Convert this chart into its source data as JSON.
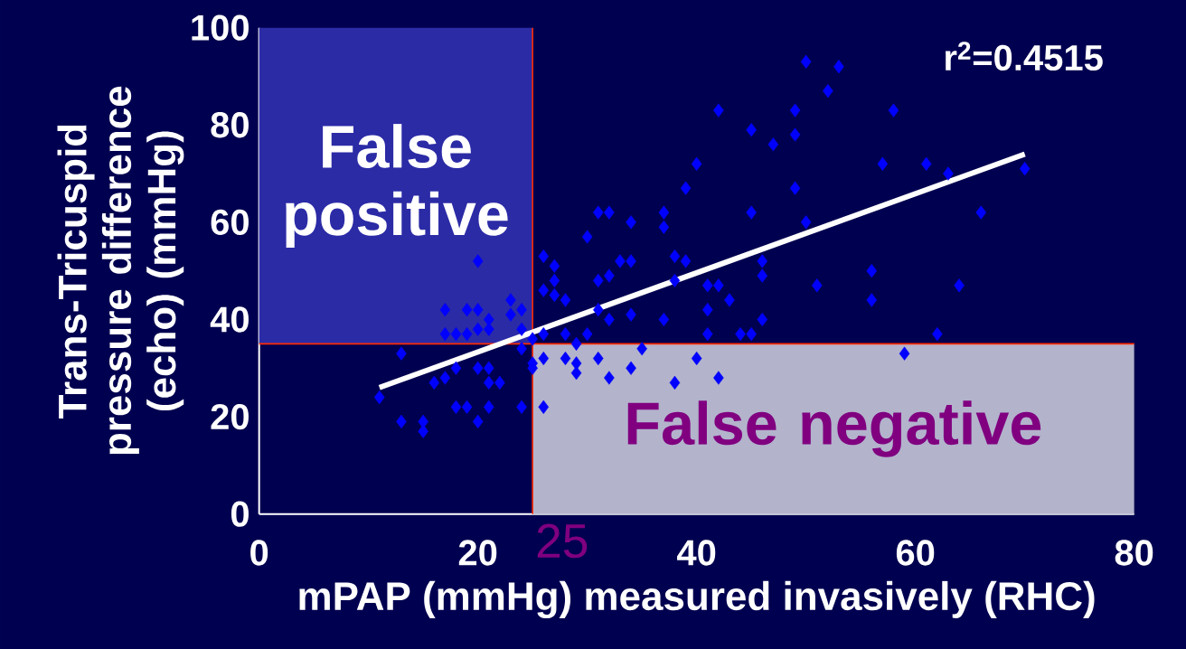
{
  "chart_data": {
    "type": "scatter",
    "xlabel": "mPAP (mmHg) measured invasively (RHC)",
    "ylabel": "Trans-Tricuspid pressure difference (echo) (mmHg)",
    "xlim": [
      0,
      80
    ],
    "ylim": [
      0,
      100
    ],
    "xticks": [
      0,
      20,
      40,
      60,
      80
    ],
    "yticks": [
      0,
      20,
      40,
      60,
      80,
      100
    ],
    "annotations": [
      "r$^{2}$=0.4515"
    ],
    "ref_lines": [
      {
        "axis": "x",
        "value": 25,
        "label": "25",
        "color": "#ff2a00"
      },
      {
        "axis": "y",
        "value": 35,
        "color": "#ff2a00"
      }
    ],
    "bands": [
      {
        "axis": "y",
        "from": 35,
        "to": 100,
        "label": "False positive",
        "color": "#2b2ba6"
      },
      {
        "axis": "y",
        "from": 0,
        "to": 35,
        "label": "False negative",
        "color": "#b3b3cc"
      }
    ],
    "series": [
      {
        "color": "#0000ff",
        "marker": "diamond",
        "x": [
          13,
          11,
          13,
          15,
          15,
          16,
          17,
          18,
          18,
          19,
          20,
          21,
          20,
          21,
          21,
          22,
          24,
          26,
          25,
          25,
          26,
          24,
          17,
          19,
          20,
          23,
          24,
          23,
          21,
          20,
          21,
          17,
          18,
          19,
          20,
          26,
          26,
          26,
          24,
          25,
          27,
          27,
          27,
          28,
          28,
          29,
          28,
          29,
          29,
          31,
          32,
          34,
          38,
          40,
          42,
          40,
          39,
          45,
          31,
          32,
          34,
          37,
          37,
          30,
          33,
          34,
          38,
          39,
          31,
          32,
          38,
          41,
          42,
          43,
          41,
          31,
          32,
          34,
          37,
          46,
          30,
          41,
          44,
          45,
          35,
          50,
          53,
          52,
          49,
          58,
          49,
          45,
          47,
          49,
          57,
          61,
          63,
          70,
          50,
          66,
          46,
          46,
          56,
          51,
          64,
          56,
          62,
          59,
          42
        ],
        "values": [
          33,
          24,
          19,
          19,
          17,
          27,
          28,
          30,
          22,
          22,
          19,
          22,
          30,
          30,
          27,
          27,
          22,
          22,
          31,
          30,
          32,
          34,
          42,
          42,
          42,
          44,
          42,
          41,
          40,
          38,
          38,
          37,
          37,
          37,
          52,
          53,
          46,
          37,
          38,
          36,
          51,
          48,
          45,
          44,
          37,
          35,
          32,
          31,
          29,
          32,
          28,
          30,
          27,
          32,
          28,
          72,
          67,
          62,
          62,
          62,
          60,
          62,
          59,
          57,
          52,
          52,
          53,
          52,
          48,
          49,
          48,
          47,
          47,
          44,
          42,
          42,
          40,
          41,
          40,
          40,
          37,
          37,
          37,
          37,
          34,
          93,
          92,
          87,
          83,
          83,
          78,
          79,
          76,
          67,
          72,
          72,
          70,
          71,
          60,
          62,
          52,
          49,
          50,
          47,
          47,
          44,
          37,
          33,
          83
        ]
      },
      {
        "type": "line",
        "color": "#ffffff",
        "x": [
          11,
          70
        ],
        "values": [
          26,
          74
        ]
      }
    ]
  }
}
